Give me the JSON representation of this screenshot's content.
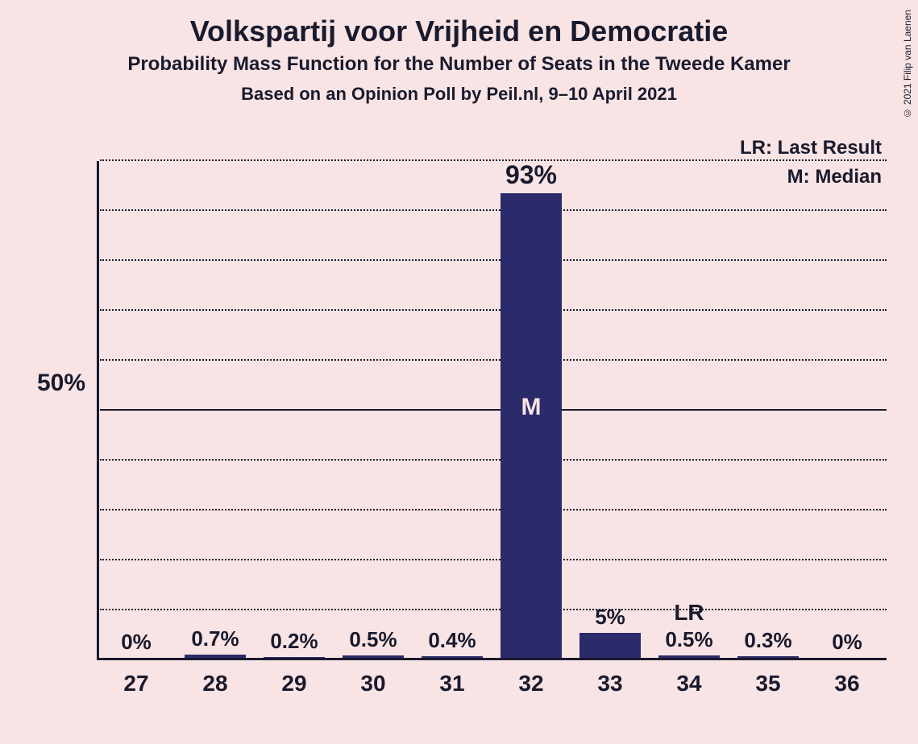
{
  "chart": {
    "type": "bar",
    "title": "Volkspartij voor Vrijheid en Democratie",
    "subtitle": "Probability Mass Function for the Number of Seats in the Tweede Kamer",
    "subtitle2": "Based on an Opinion Poll by Peil.nl, 9–10 April 2021",
    "background_color": "#f8e4e4",
    "bar_color": "#2b2a6a",
    "text_color": "#1a1a2e",
    "grid_color": "#1a1a2e",
    "ylim": [
      0,
      100
    ],
    "y_major": 50,
    "y_minor_step": 10,
    "y_axis_label": "50%",
    "categories": [
      "27",
      "28",
      "29",
      "30",
      "31",
      "32",
      "33",
      "34",
      "35",
      "36"
    ],
    "values_pct": [
      0,
      0.7,
      0.2,
      0.5,
      0.4,
      93,
      5,
      0.5,
      0.3,
      0
    ],
    "value_labels": [
      "0%",
      "0.7%",
      "0.2%",
      "0.5%",
      "0.4%",
      "93%",
      "5%",
      "0.5%",
      "0.3%",
      "0%"
    ],
    "median_index": 5,
    "median_symbol": "M",
    "last_result_index": 7,
    "last_result_symbol": "LR",
    "bar_width_ratio": 0.78,
    "title_fontsize": 36,
    "subtitle_fontsize": 24,
    "label_fontsize": 28
  },
  "legend": {
    "lr": "LR: Last Result",
    "m": "M: Median"
  },
  "copyright": "© 2021 Filip van Laenen"
}
